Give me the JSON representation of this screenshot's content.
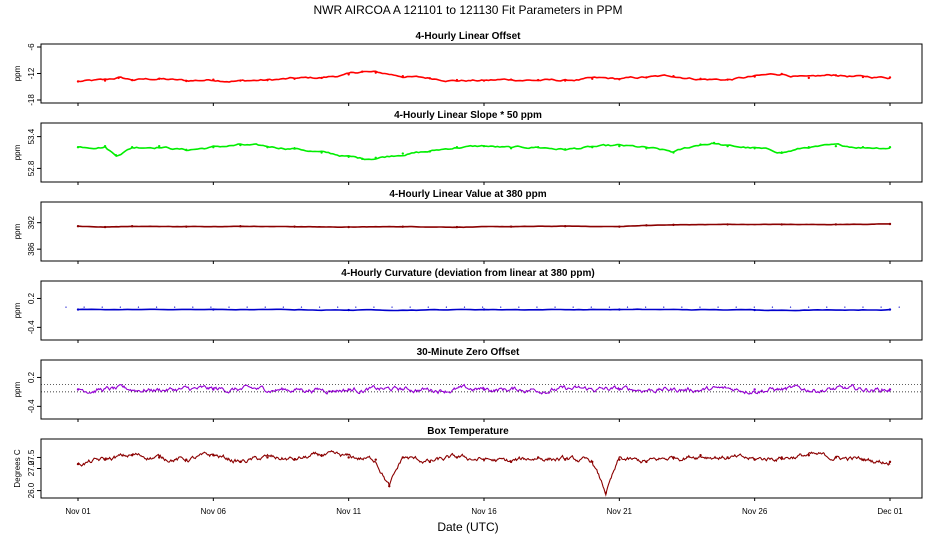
{
  "title": "NWR   AIRCOA A   121101 to 121130   Fit Parameters in PPM",
  "xlabel": "Date (UTC)",
  "x_ticks": [
    "Nov 01",
    "Nov 06",
    "Nov 11",
    "Nov 16",
    "Nov 21",
    "Nov 26",
    "Dec 01"
  ],
  "x_range_days": [
    0,
    30
  ],
  "colors": {
    "offset": "#ff0000",
    "slope": "#00ee00",
    "value": "#8b0000",
    "curvature": "#0000cd",
    "zero": "#9400d3",
    "temperature": "#8b0000"
  },
  "chart_data": [
    {
      "type": "line",
      "id": "offset",
      "title": "4-Hourly Linear Offset",
      "ylabel": "ppm",
      "yticks": [
        "-18",
        "-12",
        "-6"
      ],
      "ytick_values": [
        -18,
        -12,
        -6
      ],
      "ylim": [
        -18,
        -6
      ],
      "x": [
        0,
        1,
        1.5,
        2,
        3,
        4,
        5,
        6,
        7,
        8,
        9,
        10,
        10.5,
        11,
        12,
        13,
        14,
        15,
        16,
        17,
        18,
        19,
        20,
        21,
        22,
        23,
        24,
        25,
        26,
        27,
        28,
        29,
        30
      ],
      "values": [
        -13.8,
        -13.6,
        -13.0,
        -13.5,
        -13.2,
        -13.7,
        -13.4,
        -13.6,
        -13.5,
        -13.2,
        -13.0,
        -12.2,
        -11.6,
        -11.8,
        -12.6,
        -13.1,
        -13.5,
        -13.6,
        -13.4,
        -13.5,
        -13.6,
        -13.2,
        -13.3,
        -12.9,
        -12.6,
        -13.2,
        -13.4,
        -12.7,
        -12.1,
        -13.0,
        -12.4,
        -12.8,
        -12.9
      ]
    },
    {
      "type": "line",
      "id": "slope",
      "title": "4-Hourly Linear Slope * 50 ppm",
      "ylabel": "ppm",
      "yticks": [
        "52.8",
        "53.4"
      ],
      "ytick_values": [
        52.8,
        53.4
      ],
      "ylim": [
        52.6,
        53.6
      ],
      "x": [
        0,
        1,
        1.4,
        2,
        3,
        4,
        5,
        6,
        7,
        8,
        9,
        10,
        10.5,
        11,
        12,
        13,
        14,
        15,
        16,
        17,
        18,
        19,
        20,
        21,
        22,
        23,
        23.5,
        24,
        25,
        26,
        27,
        28,
        29,
        30
      ],
      "values": [
        53.2,
        53.22,
        53.05,
        53.2,
        53.22,
        53.15,
        53.2,
        53.24,
        53.2,
        53.18,
        53.1,
        53.02,
        52.98,
        53.0,
        53.08,
        53.12,
        53.2,
        53.22,
        53.18,
        53.2,
        53.16,
        53.2,
        53.22,
        53.18,
        53.1,
        53.25,
        53.28,
        53.22,
        53.18,
        53.1,
        53.2,
        53.22,
        53.2,
        53.2
      ]
    },
    {
      "type": "line",
      "id": "value",
      "title": "4-Hourly Linear Value at 380 ppm",
      "ylabel": "ppm",
      "yticks": [
        "386",
        "392"
      ],
      "ytick_values": [
        386,
        392
      ],
      "ylim": [
        384,
        396
      ],
      "x": [
        0,
        1,
        2,
        4,
        6,
        8,
        10,
        12,
        14,
        16,
        18,
        20,
        21,
        22,
        24,
        26,
        28,
        30
      ],
      "values": [
        391.2,
        391.0,
        391.2,
        391.1,
        391.2,
        391.1,
        391.0,
        391.1,
        391.0,
        391.1,
        391.2,
        391.1,
        391.4,
        391.5,
        391.6,
        391.6,
        391.6,
        391.7
      ]
    },
    {
      "type": "scatter",
      "id": "curvature",
      "title": "4-Hourly Curvature (deviation from linear at 380 ppm)",
      "ylabel": "ppm",
      "yticks": [
        "-0.4",
        "0.2"
      ],
      "ytick_values": [
        -0.4,
        0.2
      ],
      "ylim": [
        -0.6,
        0.5
      ],
      "x": [
        0,
        5,
        10,
        15,
        20,
        25,
        30
      ],
      "values": [
        -0.03,
        -0.03,
        -0.04,
        -0.03,
        -0.03,
        -0.04,
        -0.03
      ],
      "upper_dots": 0.02
    },
    {
      "type": "line",
      "id": "zero",
      "title": "30-Minute Zero Offset",
      "ylabel": "ppm",
      "yticks": [
        "-0.4",
        "0.2"
      ],
      "ytick_values": [
        -0.4,
        0.2
      ],
      "ylim": [
        -0.6,
        0.5
      ],
      "reference_lines": [
        0.05,
        -0.1
      ],
      "x": [
        0,
        5,
        10,
        15,
        20,
        25,
        30
      ],
      "values": [
        -0.05,
        -0.05,
        -0.05,
        -0.05,
        -0.05,
        -0.05,
        -0.05
      ]
    },
    {
      "type": "line",
      "id": "temperature",
      "title": "Box Temperature",
      "ylabel": "Degrees C",
      "yticks": [
        "26.0",
        "27.0",
        "27.5"
      ],
      "ytick_values": [
        26.0,
        27.0,
        27.5
      ],
      "ylim": [
        25.8,
        28.2
      ],
      "x": [
        0,
        1,
        2,
        3,
        4,
        5,
        6,
        7,
        8,
        9,
        10,
        11,
        11.5,
        12,
        13,
        14,
        15,
        16,
        17,
        18,
        19,
        19.5,
        20,
        21,
        22,
        23,
        24,
        25,
        26,
        27,
        28,
        29,
        30
      ],
      "values": [
        27.2,
        27.4,
        27.6,
        27.5,
        27.4,
        27.6,
        27.3,
        27.5,
        27.4,
        27.6,
        27.5,
        27.4,
        26.2,
        27.5,
        27.3,
        27.5,
        27.4,
        27.3,
        27.5,
        27.4,
        27.3,
        25.9,
        27.4,
        27.3,
        27.5,
        27.6,
        27.5,
        27.4,
        27.5,
        27.6,
        27.5,
        27.4,
        27.3
      ]
    }
  ]
}
